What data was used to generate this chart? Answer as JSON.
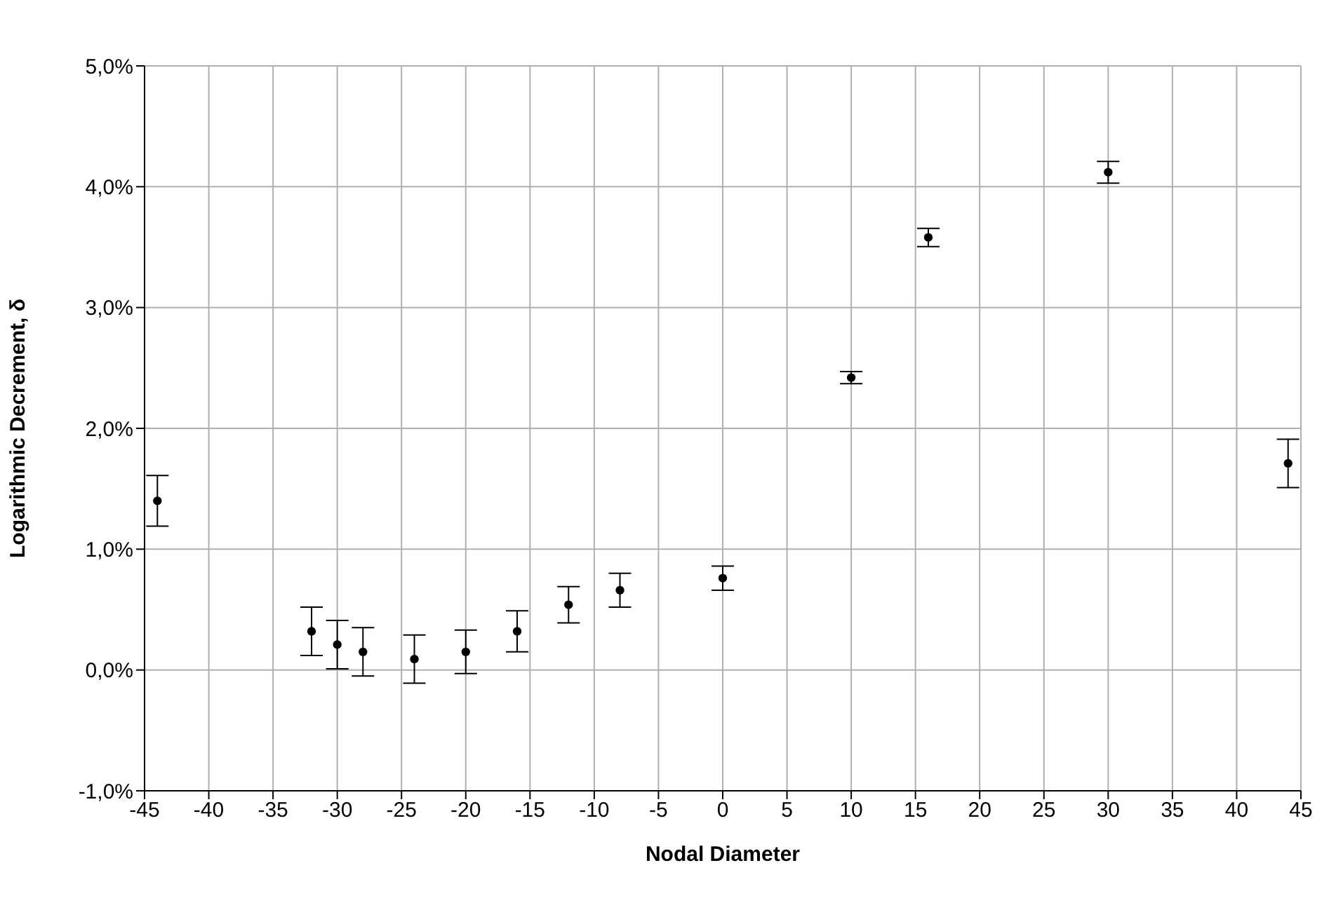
{
  "chart_data": {
    "type": "scatter",
    "xlabel": "Nodal Diameter",
    "ylabel": "Logarithmic Decrement, δ",
    "x": [
      -44,
      -32,
      -30,
      -28,
      -24,
      -20,
      -16,
      -12,
      -8,
      0,
      10,
      16,
      30,
      44
    ],
    "values": [
      1.4,
      0.32,
      0.21,
      0.15,
      0.09,
      0.15,
      0.32,
      0.54,
      0.66,
      0.76,
      2.42,
      3.58,
      4.12,
      1.71
    ],
    "errors": [
      0.21,
      0.2,
      0.2,
      0.2,
      0.2,
      0.18,
      0.17,
      0.15,
      0.14,
      0.1,
      0.05,
      0.075,
      0.09,
      0.2
    ],
    "color": "#000000",
    "marker": "circle",
    "grid": true,
    "xlim": [
      -45,
      45
    ],
    "xticks": [
      -45,
      -40,
      -35,
      -30,
      -25,
      -20,
      -15,
      -10,
      -5,
      0,
      5,
      10,
      15,
      20,
      25,
      30,
      35,
      40,
      45
    ],
    "ylim": [
      -1,
      5
    ],
    "yticks": [
      {
        "value": -1,
        "label": "-1,0%"
      },
      {
        "value": 0,
        "label": "0,0%"
      },
      {
        "value": 1,
        "label": "1,0%"
      },
      {
        "value": 2,
        "label": "2,0%"
      },
      {
        "value": 3,
        "label": "3,0%"
      },
      {
        "value": 4,
        "label": "4,0%"
      },
      {
        "value": 5,
        "label": "5,0%"
      }
    ]
  }
}
